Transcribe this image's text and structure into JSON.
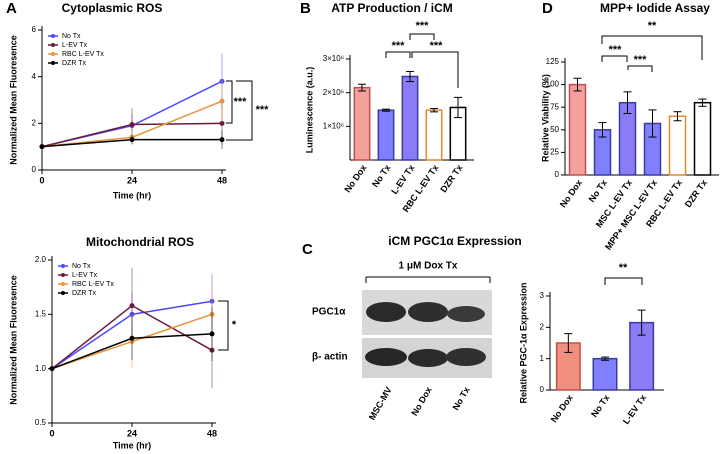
{
  "chart_data": [
    {
      "type": "line",
      "panel": "A",
      "title": "Cytoplasmic ROS",
      "xlabel": "Time (hr)",
      "ylabel": "Normalized Mean Fluoresence",
      "x": [
        0,
        24,
        48
      ],
      "xlim": [
        0,
        48
      ],
      "xticks": [
        0,
        24,
        48
      ],
      "ylim": [
        0,
        6
      ],
      "yticks": [
        0,
        2,
        4,
        6
      ],
      "series": [
        {
          "name": "No Tx",
          "color": "#4b4bff",
          "values": [
            1,
            1.9,
            3.8
          ],
          "errors": [
            0,
            0.5,
            1.2
          ]
        },
        {
          "name": "L-EV Tx",
          "color": "#6a1b3a",
          "values": [
            1,
            1.95,
            2.0
          ],
          "errors": [
            0,
            0.7,
            0.9
          ]
        },
        {
          "name": "RBC L-EV Tx",
          "color": "#e8953a",
          "values": [
            1,
            1.4,
            2.95
          ],
          "errors": [
            0,
            0.3,
            0.9
          ]
        },
        {
          "name": "DZR Tx",
          "color": "#000000",
          "values": [
            1,
            1.3,
            1.3
          ],
          "errors": [
            0,
            0.2,
            0.4
          ]
        }
      ],
      "significance": [
        "***",
        "***"
      ]
    },
    {
      "type": "line",
      "title": "Mitochondrial ROS",
      "xlabel": "Time (hr)",
      "ylabel": "Normalized Mean Fluoresence",
      "x": [
        0,
        24,
        48
      ],
      "xlim": [
        0,
        48
      ],
      "xticks": [
        0,
        24,
        48
      ],
      "ylim": [
        0.5,
        2.0
      ],
      "yticks": [
        {
          "value": 0.5,
          "label": "0.5"
        },
        {
          "value": 1.0,
          "label": "1.0"
        },
        {
          "value": 1.5,
          "label": "1.5"
        },
        {
          "value": 2.0,
          "label": "2.0"
        }
      ],
      "series": [
        {
          "name": "No Tx",
          "color": "#4b4bff",
          "values": [
            1,
            1.5,
            1.62
          ],
          "errors": [
            0,
            0.2,
            0.25
          ]
        },
        {
          "name": "L-EV Tx",
          "color": "#6a1b3a",
          "values": [
            1,
            1.58,
            1.17
          ],
          "errors": [
            0,
            0.35,
            0.35
          ]
        },
        {
          "name": "RBC L-EV Tx",
          "color": "#e8953a",
          "values": [
            1,
            1.25,
            1.5
          ],
          "errors": [
            0,
            0.25,
            0.3
          ]
        },
        {
          "name": "DZR Tx",
          "color": "#000000",
          "values": [
            1,
            1.28,
            1.32
          ],
          "errors": [
            0,
            0.2,
            0.25
          ]
        }
      ],
      "significance": [
        "*"
      ]
    },
    {
      "type": "bar",
      "panel": "B",
      "title": "ATP Production / iCM",
      "ylabel": "Luminescence (a.u.)",
      "categories": [
        "No Dox",
        "No Tx",
        "L-EV Tx",
        "RBC L-EV Tx",
        "DZR Tx"
      ],
      "values": [
        2150000,
        1480000,
        2480000,
        1480000,
        1560000
      ],
      "errors": [
        100000,
        30000,
        150000,
        50000,
        300000
      ],
      "colors": [
        "#f4a09c",
        "#7f7fff",
        "#8a7cf5",
        "#ffffff",
        "#ffffff"
      ],
      "edge_colors": [
        "#c0504d",
        "#3a3aa0",
        "#3a3aa0",
        "#e08a2a",
        "#000000"
      ],
      "ylim": [
        0,
        3000000
      ],
      "yticks": [
        {
          "value": 1000000,
          "label": "1×10⁶"
        },
        {
          "value": 2000000,
          "label": "2×10⁶"
        },
        {
          "value": 3000000,
          "label": "3×10⁶"
        }
      ],
      "significance": [
        "***",
        "***",
        "***"
      ]
    },
    {
      "type": "bar",
      "panel": "D",
      "title": "MPP+ Iodide Assay",
      "ylabel": "Relative Viability (%)",
      "categories": [
        "No Dox",
        "No Tx",
        "MSC L-EV Tx",
        "MPP+ MSC L-EV Tx",
        "RBC L-EV Tx",
        "DZR Tx"
      ],
      "values": [
        100,
        50,
        80,
        57,
        65,
        80
      ],
      "errors": [
        7,
        8,
        12,
        15,
        5,
        4
      ],
      "colors": [
        "#f4a09c",
        "#8080ff",
        "#8a7cf5",
        "#8080ff",
        "#ffffff",
        "#ffffff"
      ],
      "edge_colors": [
        "#c0504d",
        "#3a3aa0",
        "#3a3aa0",
        "#3a3aa0",
        "#e08a2a",
        "#000000"
      ],
      "ylim": [
        0,
        125
      ],
      "yticks": [
        0,
        25,
        50,
        75,
        100,
        125
      ],
      "significance": [
        "***",
        "***",
        "**"
      ]
    },
    {
      "type": "bar",
      "title": "iCM PGC1α Expression",
      "ylabel": "Relative PGC-1α Expression",
      "categories": [
        "No Dox",
        "No Tx",
        "L-EV Tx"
      ],
      "values": [
        1.5,
        1.0,
        2.15
      ],
      "errors": [
        0.3,
        0.05,
        0.4
      ],
      "colors": [
        "#f09080",
        "#8080ff",
        "#8a7cf5"
      ],
      "edge_colors": [
        "#c0504d",
        "#3a3aa0",
        "#3a3aa0"
      ],
      "ylim": [
        0,
        3
      ],
      "yticks": [
        0,
        1,
        2,
        3
      ],
      "significance": [
        "**"
      ]
    }
  ],
  "blot": {
    "panel": "C",
    "treatment": "1 μM Dox Tx",
    "rows": [
      "PGC1α",
      "β- actin"
    ],
    "lanes": [
      "MSC-MV",
      "No Dox",
      "No Tx"
    ]
  }
}
